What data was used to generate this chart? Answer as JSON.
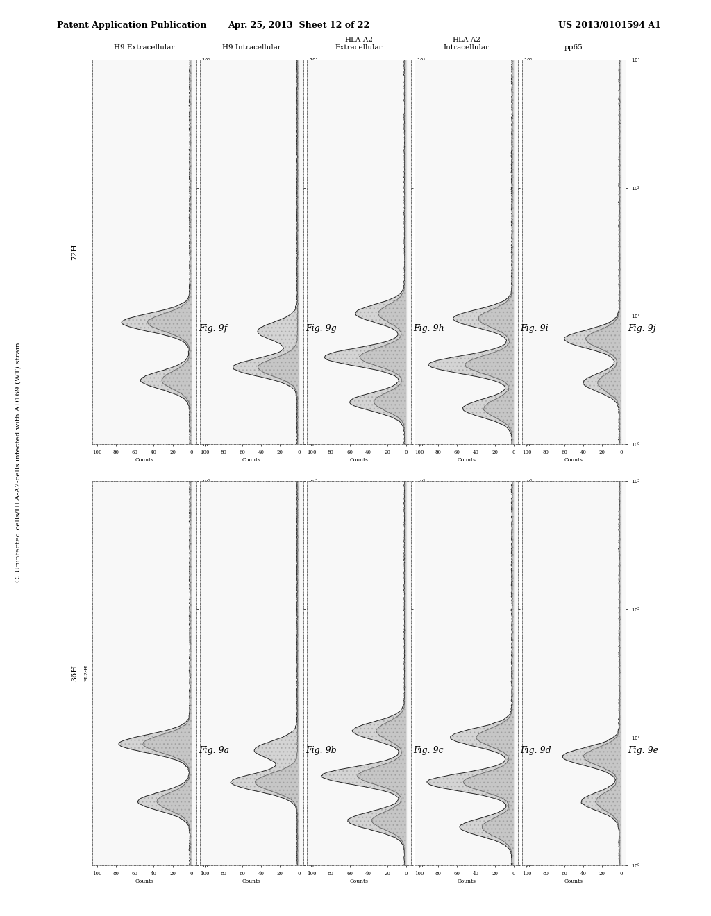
{
  "header_left": "Patent Application Publication",
  "header_center": "Apr. 25, 2013  Sheet 12 of 22",
  "header_right": "US 2013/0101594 A1",
  "section_label": "C. Uninfected cells/HLA-A2-cells infected with AD169 (WT) strain",
  "col_labels": [
    "H9 Extracellular",
    "H9 Intracellular",
    "HLA-A2\nExtracellular",
    "HLA-A2\nIntracellular",
    "pp65"
  ],
  "fig_labels_left": [
    "Fig. 9a",
    "Fig. 9b",
    "Fig. 9c",
    "Fig. 9d",
    "Fig. 9e"
  ],
  "fig_labels_right": [
    "Fig. 9f",
    "Fig. 9g",
    "Fig. 9h",
    "Fig. 9i",
    "Fig. 9j"
  ],
  "row_label_left": "36H",
  "row_label_right": "72H",
  "xlabel": "FL2-H",
  "ylabel": "Counts",
  "background_color": "#ffffff"
}
